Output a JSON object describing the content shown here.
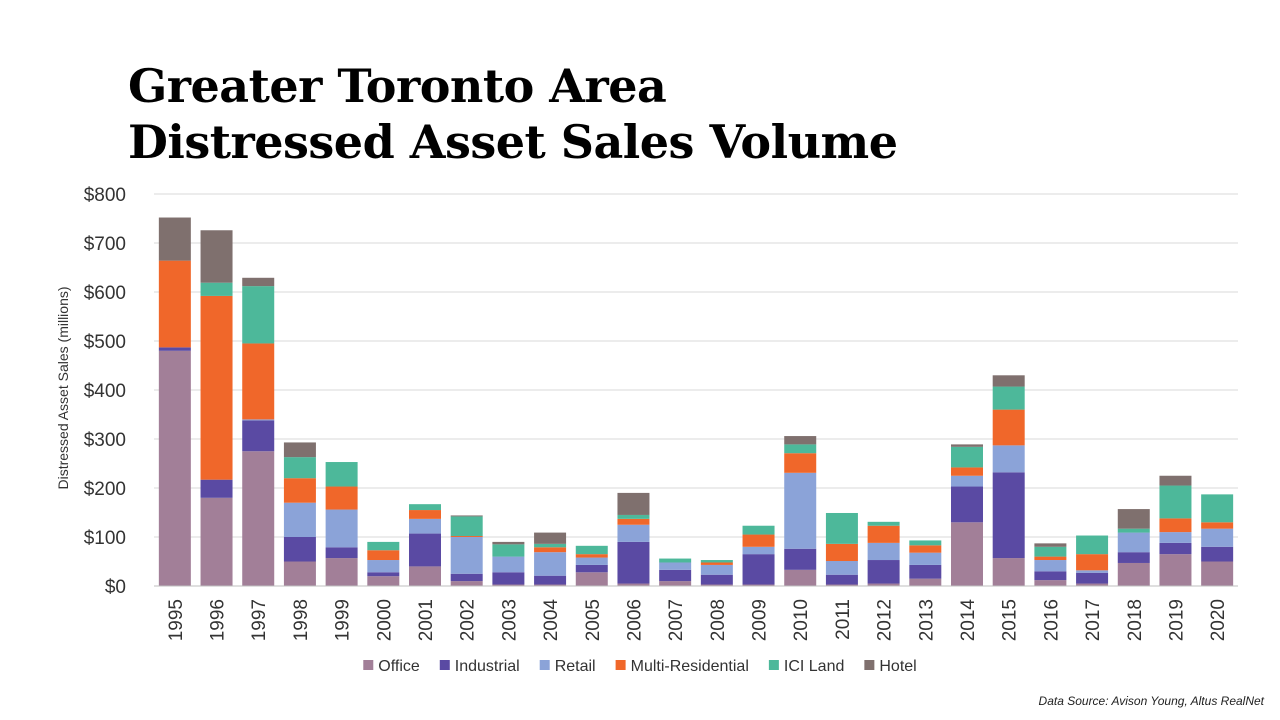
{
  "title": {
    "line1": "Greater Toronto Area",
    "line2": "Distressed Asset Sales Volume"
  },
  "source": "Data Source: Avison Young, Altus RealNet",
  "colors": {
    "office": "#a27f98",
    "industrial": "#5a4aa3",
    "retail": "#8ba3d8",
    "multi_residential": "#f0672a",
    "ici_land": "#4db89a",
    "hotel": "#7f706e",
    "grid": "#d9d9d9",
    "text": "#333333"
  },
  "chart_data": {
    "type": "bar",
    "stacked": true,
    "ylabel": "Distressed Asset Sales (millions)",
    "xlabel": "",
    "ylim": [
      0,
      800
    ],
    "yticks": [
      0,
      100,
      200,
      300,
      400,
      500,
      600,
      700,
      800
    ],
    "ytick_labels": [
      "$0",
      "$100",
      "$200",
      "$300",
      "$400",
      "$500",
      "$600",
      "$700",
      "$800"
    ],
    "grid": true,
    "legend_position": "bottom",
    "categories": [
      "1995",
      "1996",
      "1997",
      "1998",
      "1999",
      "2000",
      "2001",
      "2002",
      "2003",
      "2004",
      "2005",
      "2006",
      "2007",
      "2008",
      "2009",
      "2010",
      "2011",
      "2012",
      "2013",
      "2014",
      "2015",
      "2016",
      "2017",
      "2018",
      "2019",
      "2020"
    ],
    "series": [
      {
        "name": "Office",
        "color": "#a27f98",
        "values": [
          480,
          180,
          275,
          50,
          57,
          20,
          40,
          10,
          3,
          3,
          28,
          5,
          10,
          3,
          3,
          33,
          3,
          5,
          15,
          130,
          57,
          12,
          5,
          47,
          65,
          50
        ]
      },
      {
        "name": "Industrial",
        "color": "#5a4aa3",
        "values": [
          7,
          37,
          63,
          50,
          22,
          8,
          67,
          15,
          25,
          18,
          15,
          85,
          23,
          20,
          62,
          43,
          20,
          48,
          28,
          73,
          175,
          18,
          22,
          22,
          23,
          30
        ]
      },
      {
        "name": "Retail",
        "color": "#8ba3d8",
        "values": [
          0,
          0,
          2,
          70,
          77,
          25,
          30,
          75,
          32,
          48,
          15,
          35,
          15,
          20,
          15,
          155,
          28,
          35,
          25,
          22,
          55,
          23,
          5,
          40,
          22,
          37
        ]
      },
      {
        "name": "Multi-Residential",
        "color": "#f0672a",
        "values": [
          177,
          375,
          155,
          50,
          47,
          20,
          18,
          2,
          0,
          10,
          7,
          12,
          0,
          5,
          25,
          40,
          35,
          35,
          15,
          17,
          73,
          7,
          33,
          0,
          28,
          13
        ]
      },
      {
        "name": "ICI Land",
        "color": "#4db89a",
        "values": [
          0,
          27,
          117,
          43,
          50,
          17,
          12,
          40,
          25,
          7,
          17,
          8,
          8,
          5,
          18,
          18,
          63,
          8,
          10,
          42,
          47,
          20,
          38,
          8,
          67,
          57
        ]
      },
      {
        "name": "Hotel",
        "color": "#7f706e",
        "values": [
          88,
          107,
          17,
          30,
          0,
          0,
          0,
          2,
          5,
          23,
          0,
          45,
          0,
          0,
          0,
          17,
          0,
          0,
          0,
          5,
          23,
          7,
          0,
          40,
          20,
          0
        ]
      }
    ]
  }
}
